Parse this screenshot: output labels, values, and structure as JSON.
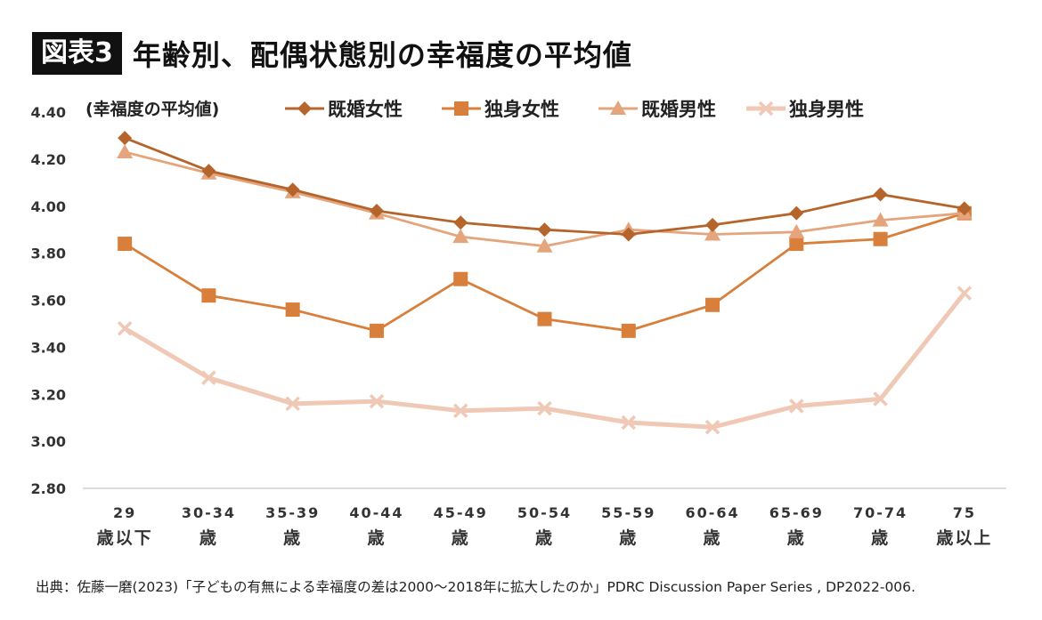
{
  "badge": "図表3",
  "title": "年齢別、配偶状態別の幸福度の平均値",
  "source": "出典：佐藤一磨(2023)「子どもの有無による幸福度の差は2000～2018年に拡大したのか」PDRC Discussion Paper Series , DP2022-006.",
  "colors": {
    "married_female": "#b5652b",
    "single_female": "#d87f3c",
    "married_male": "#e4a57c",
    "single_male": "#f0c8b6"
  },
  "chart_data": {
    "type": "line",
    "ylabel": "(幸福度の平均値)",
    "ylim": [
      2.8,
      4.4
    ],
    "yticks": [
      "2.80",
      "3.00",
      "3.20",
      "3.40",
      "3.60",
      "3.80",
      "4.00",
      "4.20",
      "4.40"
    ],
    "categories": [
      [
        "29",
        "歳以下"
      ],
      [
        "30-34",
        "歳"
      ],
      [
        "35-39",
        "歳"
      ],
      [
        "40-44",
        "歳"
      ],
      [
        "45-49",
        "歳"
      ],
      [
        "50-54",
        "歳"
      ],
      [
        "55-59",
        "歳"
      ],
      [
        "60-64",
        "歳"
      ],
      [
        "65-69",
        "歳"
      ],
      [
        "70-74",
        "歳"
      ],
      [
        "75",
        "歳以上"
      ]
    ],
    "grid": false,
    "legend_position": "top",
    "series": [
      {
        "name": "既婚女性",
        "marker": "diamond",
        "color": "#b5652b",
        "values": [
          4.29,
          4.15,
          4.07,
          3.98,
          3.93,
          3.9,
          3.88,
          3.92,
          3.97,
          4.05,
          3.99
        ]
      },
      {
        "name": "独身女性",
        "marker": "square",
        "color": "#d87f3c",
        "values": [
          3.84,
          3.62,
          3.56,
          3.47,
          3.69,
          3.52,
          3.47,
          3.58,
          3.84,
          3.86,
          3.97
        ]
      },
      {
        "name": "既婚男性",
        "marker": "triangle",
        "color": "#e4a57c",
        "values": [
          4.23,
          4.14,
          4.06,
          3.97,
          3.87,
          3.83,
          3.9,
          3.88,
          3.89,
          3.94,
          3.97
        ]
      },
      {
        "name": "独身男性",
        "marker": "x",
        "color": "#f0c8b6",
        "values": [
          3.48,
          3.27,
          3.16,
          3.17,
          3.13,
          3.14,
          3.08,
          3.06,
          3.15,
          3.18,
          3.63
        ]
      }
    ]
  }
}
